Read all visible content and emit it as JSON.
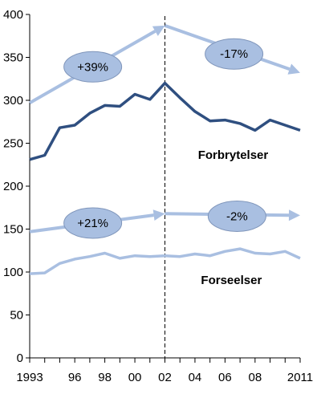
{
  "chart_data": {
    "type": "line",
    "title": "",
    "xlabel": "",
    "ylabel": "",
    "ylim": [
      0,
      400
    ],
    "yticks": [
      0,
      50,
      100,
      150,
      200,
      250,
      300,
      350,
      400
    ],
    "xlim": [
      1993,
      2011
    ],
    "xtick_labels": [
      {
        "x": 1993,
        "label": "1993"
      },
      {
        "x": 1996,
        "label": "96"
      },
      {
        "x": 1998,
        "label": "98"
      },
      {
        "x": 2000,
        "label": "00"
      },
      {
        "x": 2002,
        "label": "02"
      },
      {
        "x": 2004,
        "label": "04"
      },
      {
        "x": 2006,
        "label": "06"
      },
      {
        "x": 2008,
        "label": "08"
      },
      {
        "x": 2011,
        "label": "2011"
      }
    ],
    "x": [
      1993,
      1994,
      1995,
      1996,
      1997,
      1998,
      1999,
      2000,
      2001,
      2002,
      2003,
      2004,
      2005,
      2006,
      2007,
      2008,
      2009,
      2010,
      2011
    ],
    "series": [
      {
        "name": "Forbrytelser",
        "color": "#2f4f80",
        "values": [
          231,
          236,
          268,
          271,
          285,
          294,
          293,
          307,
          301,
          320,
          303,
          287,
          276,
          277,
          273,
          265,
          277,
          271,
          265
        ]
      },
      {
        "name": "Forseelser",
        "color": "#a9bfe1",
        "values": [
          98,
          99,
          110,
          115,
          118,
          122,
          116,
          119,
          118,
          119,
          118,
          121,
          119,
          124,
          127,
          122,
          121,
          124,
          116
        ]
      }
    ],
    "annotations": {
      "reference_line_x": 2002,
      "arrows": [
        {
          "from": [
            1993,
            297
          ],
          "to": [
            2002,
            387
          ]
        },
        {
          "from": [
            2002,
            387
          ],
          "to": [
            2011,
            332
          ]
        },
        {
          "from": [
            1993,
            147
          ],
          "to": [
            2002,
            168
          ]
        },
        {
          "from": [
            2002,
            168
          ],
          "to": [
            2011,
            166
          ]
        }
      ],
      "bubbles": [
        {
          "label": "+39%",
          "x": 1997.2,
          "y": 339
        },
        {
          "label": "-17%",
          "x": 2006.6,
          "y": 354
        },
        {
          "label": "+21%",
          "x": 1997.2,
          "y": 157
        },
        {
          "label": "-2%",
          "x": 2006.8,
          "y": 165
        }
      ],
      "arrow_color": "#a9bfe1",
      "bubble_color": "#a9bfe1"
    }
  }
}
